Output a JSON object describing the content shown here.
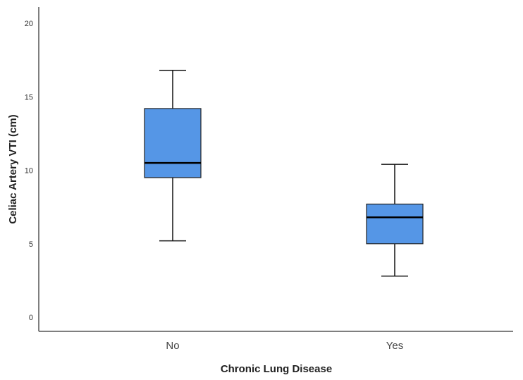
{
  "chart_data": {
    "type": "box",
    "xlabel": "Chronic Lung Disease",
    "ylabel": "Celiac Artery VTI (cm)",
    "ylim": [
      0,
      20
    ],
    "yticks": [
      "0",
      "5",
      "10",
      "15",
      "20"
    ],
    "grid": false,
    "box_color": "#5596e6",
    "categories": [
      "No",
      "Yes"
    ],
    "boxes": [
      {
        "category": "No",
        "min": 5.2,
        "q1": 9.5,
        "median": 10.5,
        "q3": 14.2,
        "max": 16.8
      },
      {
        "category": "Yes",
        "min": 2.8,
        "q1": 5.0,
        "median": 6.8,
        "q3": 7.7,
        "max": 10.4
      }
    ]
  }
}
